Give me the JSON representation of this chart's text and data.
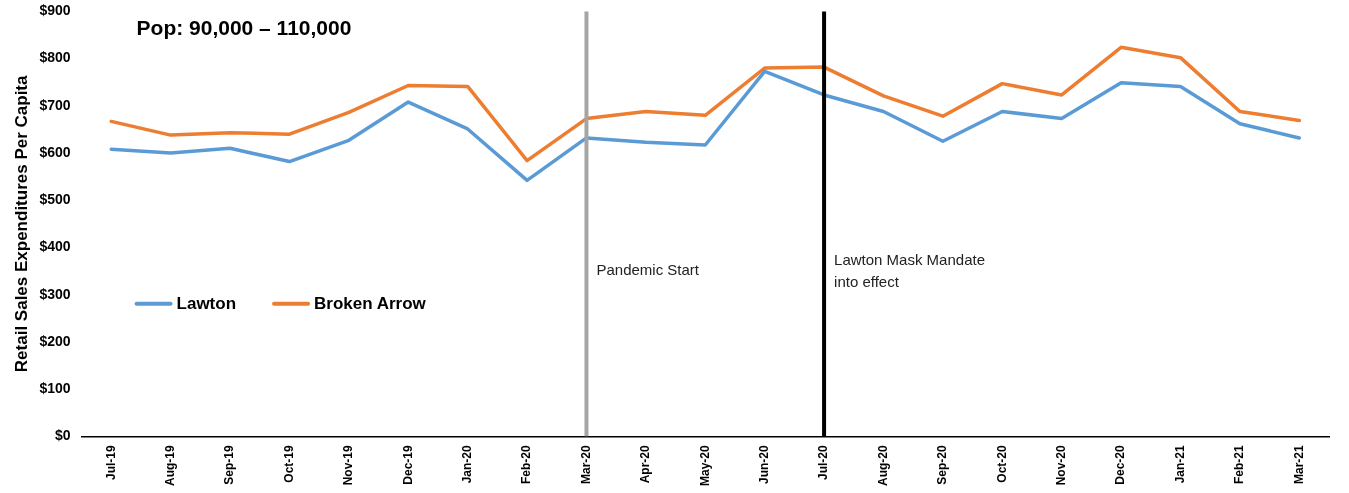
{
  "chart_data": {
    "type": "line",
    "title": "Pop: 90,000 – 110,000",
    "ylabel": "Retail Sales Expenditures Per Capita",
    "categories": [
      "Jul-19",
      "Aug-19",
      "Sep-19",
      "Oct-19",
      "Nov-19",
      "Dec-19",
      "Jan-20",
      "Feb-20",
      "Mar-20",
      "Apr-20",
      "May-20",
      "Jun-20",
      "Jul-20",
      "Aug-20",
      "Sep-20",
      "Oct-20",
      "Nov-20",
      "Dec-20",
      "Jan-21",
      "Feb-21",
      "Mar-21"
    ],
    "series": [
      {
        "name": "Lawton",
        "color": "#5b9bd5",
        "values": [
          608,
          600,
          610,
          582,
          627,
          708,
          651,
          542,
          632,
          623,
          617,
          773,
          723,
          688,
          625,
          688,
          673,
          749,
          741,
          662,
          632
        ]
      },
      {
        "name": "Broken Arrow",
        "color": "#ed7d31",
        "values": [
          667,
          638,
          643,
          640,
          686,
          743,
          741,
          584,
          673,
          688,
          680,
          780,
          782,
          721,
          678,
          747,
          723,
          824,
          802,
          688,
          669
        ]
      }
    ],
    "ylim": [
      0,
      900
    ],
    "yticks": [
      {
        "value": 0,
        "label": "$0"
      },
      {
        "value": 100,
        "label": "$100"
      },
      {
        "value": 200,
        "label": "$200"
      },
      {
        "value": 300,
        "label": "$300"
      },
      {
        "value": 400,
        "label": "$400"
      },
      {
        "value": 500,
        "label": "$500"
      },
      {
        "value": 600,
        "label": "$600"
      },
      {
        "value": 700,
        "label": "$700"
      },
      {
        "value": 800,
        "label": "$800"
      },
      {
        "value": 900,
        "label": "$900"
      }
    ],
    "ref_lines": [
      {
        "axis": "x",
        "value": "Mar-20",
        "label": "Pandemic Start",
        "color": "#a5a5a5"
      },
      {
        "axis": "x",
        "value": "Jul-20",
        "label": "Lawton Mask Mandate\ninto effect",
        "color": "#000000"
      }
    ],
    "legend": "left",
    "grid": false,
    "marker": "none",
    "line_style": "solid"
  }
}
